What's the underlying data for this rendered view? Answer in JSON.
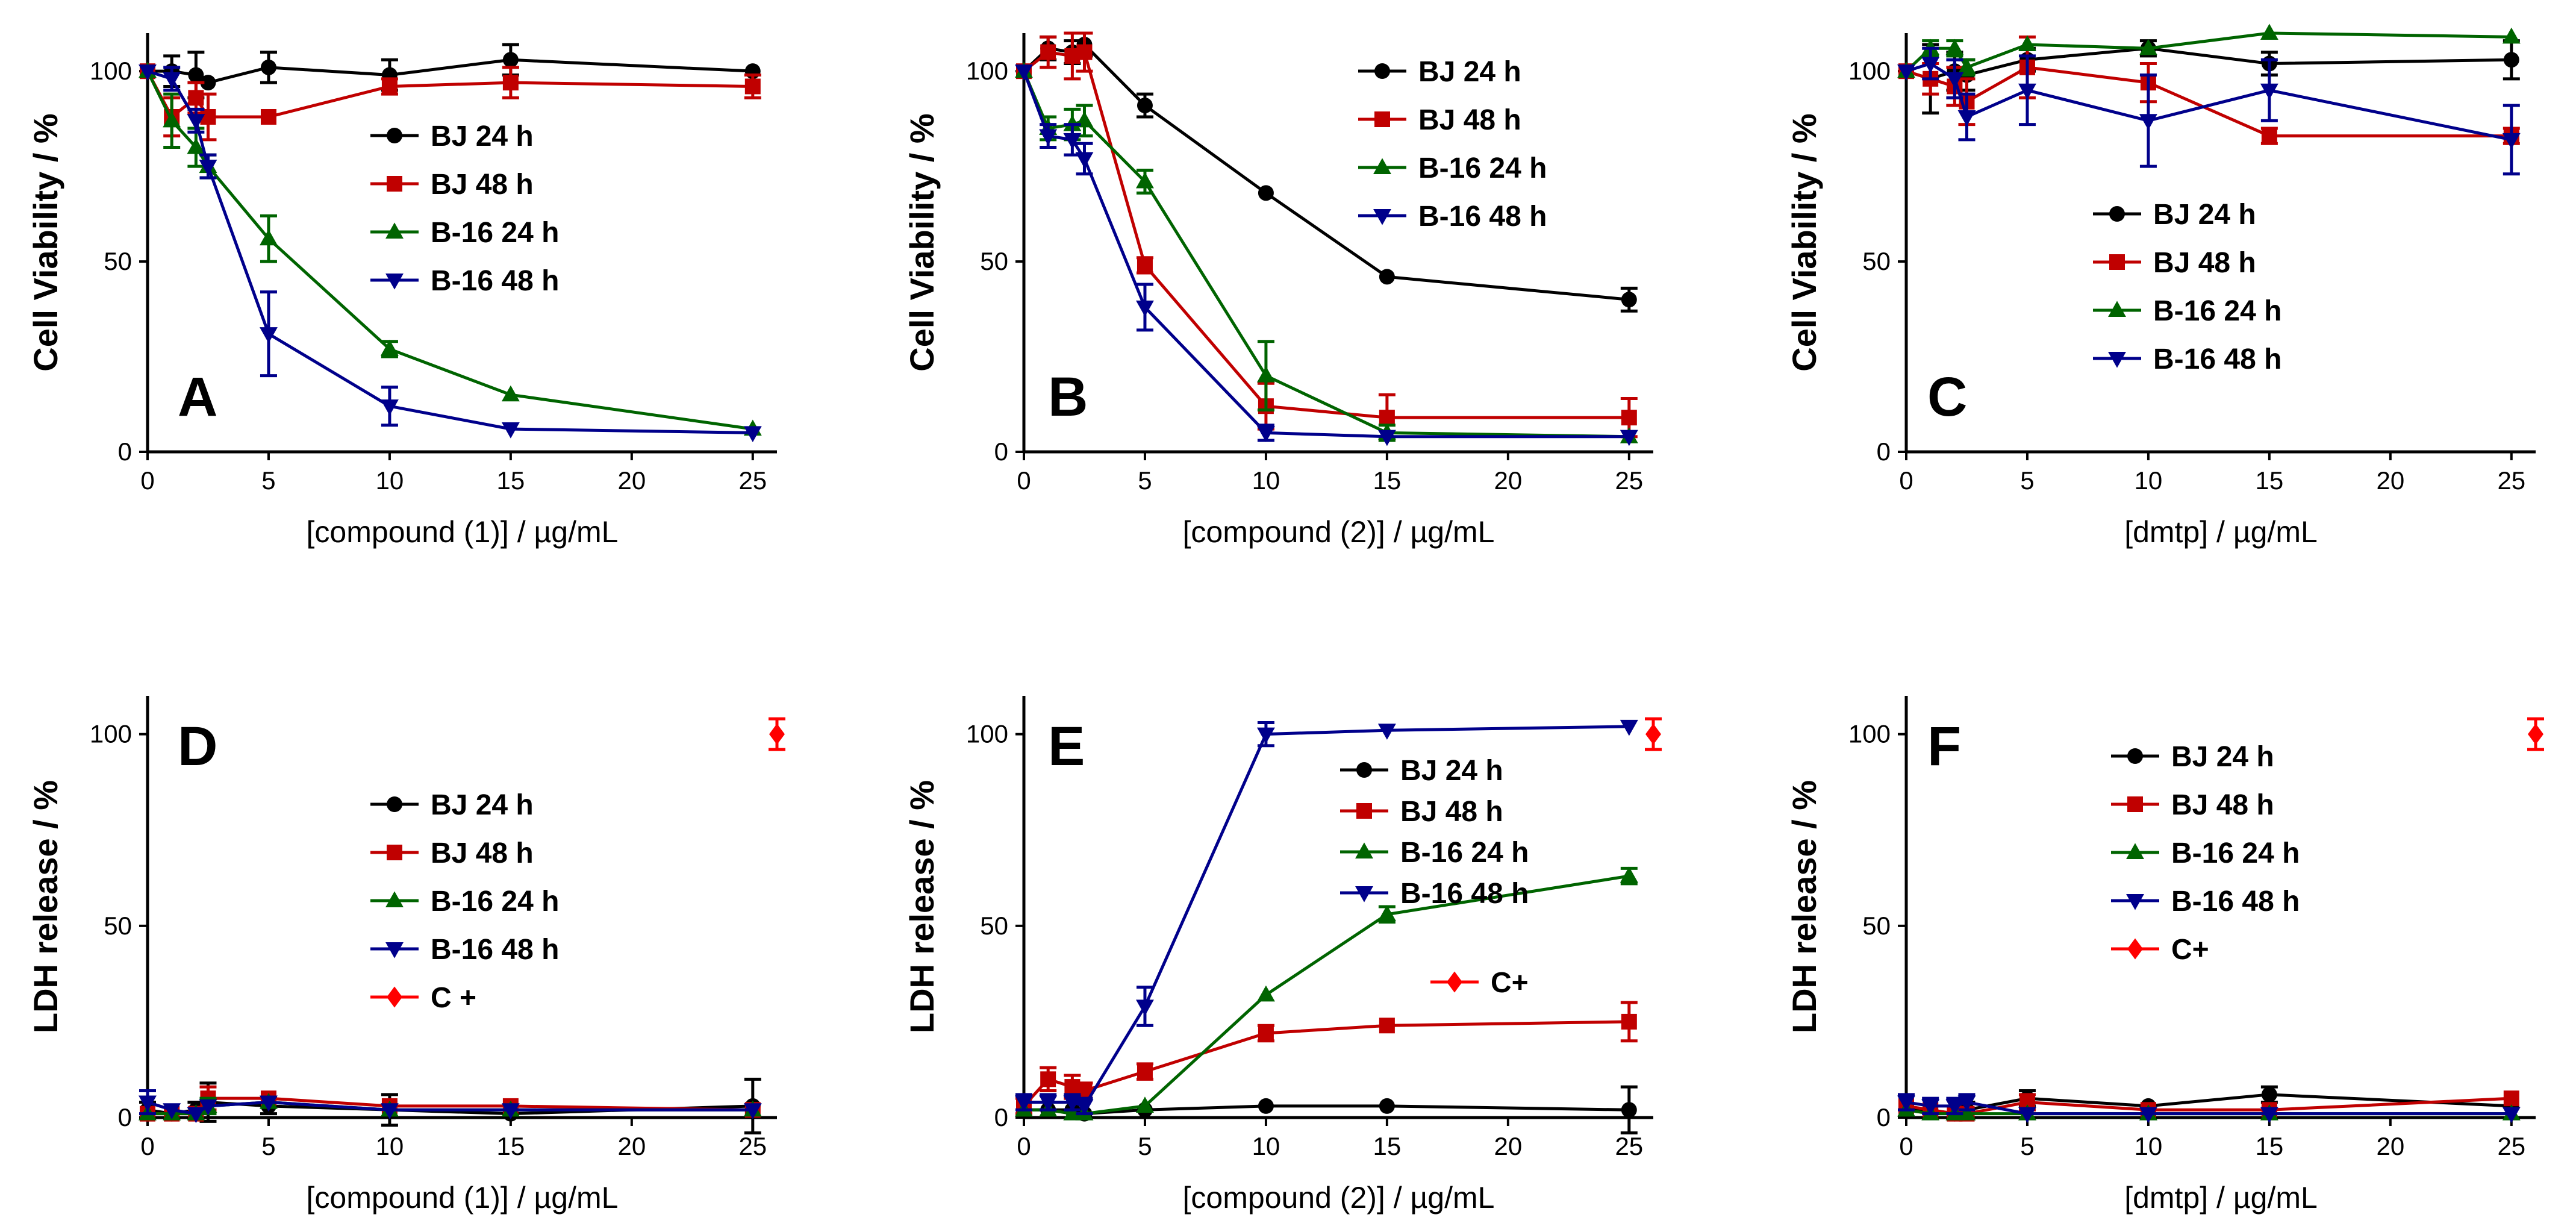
{
  "colors": {
    "BJ 24 h": "#000000",
    "BJ 48 h": "#c00000",
    "B-16 24 h": "#006400",
    "B-16 48 h": "#00008b",
    "C+": "#ff0000"
  },
  "chart_data": [
    {
      "type": "line",
      "panel": "A",
      "xlabel": "[compound (1)]  /  µg/mL",
      "ylabel": "Cell Viability  /  %",
      "xlim": [
        0,
        26
      ],
      "ylim": [
        0,
        110
      ],
      "xticks": [
        "0",
        "5",
        "10",
        "15",
        "20",
        "25"
      ],
      "yticks": [
        "0",
        "50",
        "100"
      ],
      "legend_items": [
        "BJ 24 h",
        "BJ 48 h",
        "B-16 24 h",
        "B-16 48 h"
      ],
      "series": [
        {
          "name": "BJ 24 h",
          "marker": "circle",
          "x": [
            0,
            1,
            2,
            2.5,
            5,
            10,
            15,
            25
          ],
          "values": [
            100,
            100,
            99,
            97,
            101,
            99,
            103,
            100
          ],
          "err": [
            0,
            4,
            6,
            1,
            4,
            4,
            4,
            1
          ]
        },
        {
          "name": "BJ 48 h",
          "marker": "square",
          "x": [
            0,
            1,
            2,
            2.5,
            5,
            10,
            15,
            25
          ],
          "values": [
            100,
            88,
            93,
            88,
            88,
            96,
            97,
            96
          ],
          "err": [
            0,
            5,
            4,
            6,
            1,
            2,
            4,
            3
          ]
        },
        {
          "name": "B-16 24 h",
          "marker": "triangle-up",
          "x": [
            0,
            1,
            2,
            2.5,
            5,
            10,
            15,
            25
          ],
          "values": [
            100,
            87,
            80,
            75,
            56,
            27,
            15,
            6
          ],
          "err": [
            0,
            7,
            5,
            3,
            6,
            2,
            1,
            1
          ]
        },
        {
          "name": "B-16 48 h",
          "marker": "triangle-down",
          "x": [
            0,
            1,
            2,
            2.5,
            5,
            10,
            15,
            25
          ],
          "values": [
            100,
            98,
            87,
            75,
            31,
            12,
            6,
            5
          ],
          "err": [
            0,
            3,
            3,
            3,
            11,
            5,
            1,
            1
          ]
        }
      ]
    },
    {
      "type": "line",
      "panel": "B",
      "xlabel": "[compound (2)]  /  µg/mL",
      "ylabel": "Cell Viability  /  %",
      "xlim": [
        0,
        26
      ],
      "ylim": [
        0,
        110
      ],
      "xticks": [
        "0",
        "5",
        "10",
        "15",
        "20",
        "25"
      ],
      "yticks": [
        "0",
        "50",
        "100"
      ],
      "legend_items": [
        "BJ 24 h",
        "BJ 48 h",
        "B-16 24 h",
        "B-16 48 h"
      ],
      "series": [
        {
          "name": "BJ 24 h",
          "marker": "circle",
          "x": [
            0,
            1,
            2,
            2.5,
            5,
            10,
            15,
            25
          ],
          "values": [
            100,
            106,
            105,
            107,
            91,
            68,
            46,
            40
          ],
          "err": [
            0,
            3,
            3,
            3,
            3,
            1,
            1,
            3
          ]
        },
        {
          "name": "BJ 48 h",
          "marker": "square",
          "x": [
            0,
            1,
            2,
            2.5,
            5,
            10,
            15,
            25
          ],
          "values": [
            100,
            105,
            104,
            105,
            49,
            12,
            9,
            9
          ],
          "err": [
            0,
            4,
            6,
            5,
            2,
            6,
            6,
            5
          ]
        },
        {
          "name": "B-16 24 h",
          "marker": "triangle-up",
          "x": [
            0,
            1,
            2,
            2.5,
            5,
            10,
            15,
            25
          ],
          "values": [
            100,
            85,
            86,
            87,
            71,
            20,
            5,
            4
          ],
          "err": [
            0,
            3,
            4,
            4,
            3,
            9,
            2,
            1
          ]
        },
        {
          "name": "B-16 48 h",
          "marker": "triangle-down",
          "x": [
            0,
            1,
            2,
            2.5,
            5,
            10,
            15,
            25
          ],
          "values": [
            100,
            83,
            82,
            77,
            38,
            5,
            4,
            4
          ],
          "err": [
            0,
            3,
            4,
            4,
            6,
            2,
            1,
            1
          ]
        }
      ]
    },
    {
      "type": "line",
      "panel": "C",
      "xlabel": "[dmtp]  /  µg/mL",
      "ylabel": "Cell Viability  /  %",
      "xlim": [
        0,
        26
      ],
      "ylim": [
        0,
        110
      ],
      "xticks": [
        "0",
        "5",
        "10",
        "15",
        "20",
        "25"
      ],
      "yticks": [
        "0",
        "50",
        "100"
      ],
      "legend_items": [
        "BJ 24 h",
        "BJ 48 h",
        "B-16 24 h",
        "B-16 48 h"
      ],
      "series": [
        {
          "name": "BJ 24 h",
          "marker": "circle",
          "x": [
            0,
            1,
            2,
            2.5,
            5,
            10,
            15,
            25
          ],
          "values": [
            100,
            98,
            100,
            99,
            103,
            106,
            102,
            103
          ],
          "err": [
            0,
            9,
            5,
            4,
            3,
            2,
            3,
            5
          ]
        },
        {
          "name": "BJ 48 h",
          "marker": "square",
          "x": [
            0,
            1,
            2,
            2.5,
            5,
            10,
            15,
            25
          ],
          "values": [
            100,
            98,
            96,
            92,
            101,
            97,
            83,
            83
          ],
          "err": [
            0,
            4,
            5,
            6,
            8,
            5,
            2,
            2
          ]
        },
        {
          "name": "B-16 24 h",
          "marker": "triangle-up",
          "x": [
            0,
            1,
            2,
            2.5,
            5,
            10,
            15,
            25
          ],
          "values": [
            100,
            106,
            106,
            101,
            107,
            106,
            110,
            109
          ],
          "err": [
            0,
            2,
            2,
            2,
            1,
            1,
            1,
            1
          ]
        },
        {
          "name": "B-16 48 h",
          "marker": "triangle-down",
          "x": [
            0,
            1,
            2,
            2.5,
            5,
            10,
            15,
            25
          ],
          "values": [
            100,
            102,
            98,
            88,
            95,
            87,
            95,
            82
          ],
          "err": [
            0,
            4,
            5,
            6,
            9,
            12,
            8,
            9
          ]
        }
      ]
    },
    {
      "type": "line",
      "panel": "D",
      "xlabel": "[compound (1)]  /  µg/mL",
      "ylabel": "LDH release  /  %",
      "xlim": [
        0,
        26
      ],
      "ylim": [
        0,
        110
      ],
      "xticks": [
        "0",
        "5",
        "10",
        "15",
        "20",
        "25"
      ],
      "yticks": [
        "0",
        "50",
        "100"
      ],
      "legend_items": [
        "BJ 24 h",
        "BJ 48 h",
        "B-16 24 h",
        "B-16 48 h",
        "C +"
      ],
      "series": [
        {
          "name": "BJ 24 h",
          "marker": "circle",
          "x": [
            0,
            1,
            2,
            2.5,
            5,
            10,
            15,
            25
          ],
          "values": [
            2,
            1,
            2,
            4,
            3,
            2,
            1,
            3
          ],
          "err": [
            2,
            1,
            2,
            5,
            2,
            4,
            1,
            7
          ]
        },
        {
          "name": "BJ 48 h",
          "marker": "square",
          "x": [
            0,
            1,
            2,
            2.5,
            5,
            10,
            15,
            25
          ],
          "values": [
            1,
            1,
            1,
            5,
            5,
            3,
            3,
            2
          ],
          "err": [
            1,
            1,
            1,
            3,
            1,
            1,
            1,
            1
          ]
        },
        {
          "name": "B-16 24 h",
          "marker": "triangle-up",
          "x": [
            0,
            1,
            2,
            2.5,
            5,
            10,
            15,
            25
          ],
          "values": [
            1,
            1,
            1,
            3,
            4,
            2,
            2,
            2
          ],
          "err": [
            1,
            1,
            1,
            2,
            1,
            1,
            1,
            1
          ]
        },
        {
          "name": "B-16 48 h",
          "marker": "triangle-down",
          "x": [
            0,
            1,
            2,
            2.5,
            5,
            10,
            15,
            25
          ],
          "values": [
            4,
            2,
            1,
            3,
            4,
            2,
            2,
            2
          ],
          "err": [
            3,
            1,
            1,
            1,
            1,
            1,
            1,
            1
          ]
        },
        {
          "name": "C +",
          "color_key": "C+",
          "marker": "diamond",
          "x": [
            26
          ],
          "values": [
            100
          ],
          "err": [
            4
          ]
        }
      ]
    },
    {
      "type": "line",
      "panel": "E",
      "xlabel": "[compound (2)]  /  µg/mL",
      "ylabel": "LDH release  /  %",
      "xlim": [
        0,
        26
      ],
      "ylim": [
        0,
        110
      ],
      "xticks": [
        "0",
        "5",
        "10",
        "15",
        "20",
        "25"
      ],
      "yticks": [
        "0",
        "50",
        "100"
      ],
      "legend_items": [
        "BJ 24 h",
        "BJ 48 h",
        "B-16 24 h",
        "B-16 48 h",
        "C+"
      ],
      "series": [
        {
          "name": "BJ 24 h",
          "marker": "circle",
          "x": [
            0,
            1,
            2,
            2.5,
            5,
            10,
            15,
            25
          ],
          "values": [
            2,
            2,
            2,
            1,
            2,
            3,
            3,
            2
          ],
          "err": [
            1,
            1,
            1,
            1,
            1,
            1,
            1,
            6
          ]
        },
        {
          "name": "BJ 48 h",
          "marker": "square",
          "x": [
            0,
            1,
            2,
            2.5,
            5,
            10,
            15,
            25
          ],
          "values": [
            3,
            10,
            8,
            7,
            12,
            22,
            24,
            25
          ],
          "err": [
            2,
            3,
            3,
            2,
            2,
            2,
            1,
            5
          ]
        },
        {
          "name": "B-16 24 h",
          "marker": "triangle-up",
          "x": [
            0,
            1,
            2,
            2.5,
            5,
            10,
            15,
            25
          ],
          "values": [
            2,
            2,
            1,
            1,
            3,
            32,
            53,
            63
          ],
          "err": [
            1,
            1,
            1,
            1,
            1,
            1,
            2,
            2
          ]
        },
        {
          "name": "B-16 48 h",
          "marker": "triangle-down",
          "x": [
            0,
            1,
            2,
            2.5,
            5,
            10,
            15,
            25
          ],
          "values": [
            4,
            4,
            4,
            3,
            29,
            100,
            101,
            102
          ],
          "err": [
            2,
            2,
            2,
            2,
            5,
            3,
            1,
            1
          ]
        },
        {
          "name": "C+",
          "marker": "diamond",
          "x": [
            26
          ],
          "values": [
            100
          ],
          "err": [
            4
          ]
        }
      ]
    },
    {
      "type": "line",
      "panel": "F",
      "xlabel": "[dmtp]  /  µg/mL",
      "ylabel": "LDH release  /  %",
      "xlim": [
        0,
        26
      ],
      "ylim": [
        0,
        110
      ],
      "xticks": [
        "0",
        "5",
        "10",
        "15",
        "20",
        "25"
      ],
      "yticks": [
        "0",
        "50",
        "100"
      ],
      "legend_items": [
        "BJ 24 h",
        "BJ 48 h",
        "B-16 24 h",
        "B-16 48 h",
        "C+"
      ],
      "series": [
        {
          "name": "BJ 24 h",
          "marker": "circle",
          "x": [
            0,
            1,
            2,
            2.5,
            5,
            10,
            15,
            25
          ],
          "values": [
            2,
            2,
            1,
            2,
            5,
            3,
            6,
            3
          ],
          "err": [
            1,
            1,
            1,
            2,
            2,
            1,
            2,
            1
          ]
        },
        {
          "name": "BJ 48 h",
          "marker": "square",
          "x": [
            0,
            1,
            2,
            2.5,
            5,
            10,
            15,
            25
          ],
          "values": [
            3,
            2,
            1,
            1,
            4,
            2,
            2,
            5
          ],
          "err": [
            1,
            1,
            1,
            1,
            2,
            1,
            1,
            1
          ]
        },
        {
          "name": "B-16 24 h",
          "marker": "triangle-up",
          "x": [
            0,
            1,
            2,
            2.5,
            5,
            10,
            15,
            25
          ],
          "values": [
            2,
            1,
            1,
            1,
            1,
            1,
            1,
            1
          ],
          "err": [
            1,
            1,
            1,
            1,
            1,
            1,
            1,
            1
          ]
        },
        {
          "name": "B-16 48 h",
          "marker": "triangle-down",
          "x": [
            0,
            1,
            2,
            2.5,
            5,
            10,
            15,
            25
          ],
          "values": [
            4,
            3,
            3,
            4,
            1,
            1,
            1,
            1
          ],
          "err": [
            2,
            2,
            2,
            2,
            1,
            1,
            1,
            1
          ]
        },
        {
          "name": "C+",
          "marker": "diamond",
          "x": [
            26
          ],
          "values": [
            100
          ],
          "err": [
            4
          ]
        }
      ]
    }
  ]
}
